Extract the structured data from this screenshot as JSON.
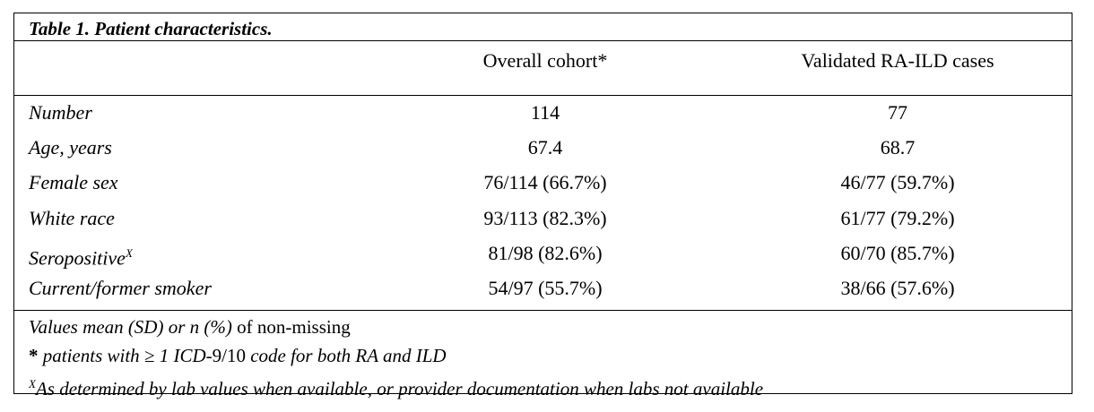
{
  "table": {
    "title": "Table 1. Patient characteristics.",
    "columns": [
      "Overall cohort*",
      "Validated RA-ILD cases"
    ],
    "rows": [
      {
        "label": "Number",
        "values": [
          "114",
          "77"
        ]
      },
      {
        "label": "Age, years",
        "values": [
          "67.4",
          "68.7"
        ]
      },
      {
        "label": "Female sex",
        "values": [
          "76/114 (66.7%)",
          "46/77 (59.7%)"
        ]
      },
      {
        "label": "White race",
        "values": [
          "93/113 (82.3%)",
          "61/77 (79.2%)"
        ]
      },
      {
        "label": "Seropositive",
        "label_sup": "X",
        "values": [
          "81/98 (82.6%)",
          "60/70 (85.7%)"
        ]
      },
      {
        "label": "Current/former smoker",
        "values": [
          "54/97 (55.7%)",
          "38/66 (57.6%)"
        ]
      }
    ]
  },
  "footnotes": [
    [
      {
        "text": "Values mean (SD) or n (%)",
        "style": "italic"
      },
      {
        "text": " of non-missing",
        "style": "normal"
      }
    ],
    [
      {
        "text": "*",
        "style": "bold"
      },
      {
        "text": " patients with ≥ 1 ICD",
        "style": "italic"
      },
      {
        "text": "-9/10",
        "style": "normal"
      },
      {
        "text": " code for both RA and ILD",
        "style": "italic"
      }
    ],
    [
      {
        "text": "X",
        "style": "sup"
      },
      {
        "text": "As determined by lab values when available, or provider documentation when labs not available",
        "style": "italic"
      }
    ]
  ]
}
